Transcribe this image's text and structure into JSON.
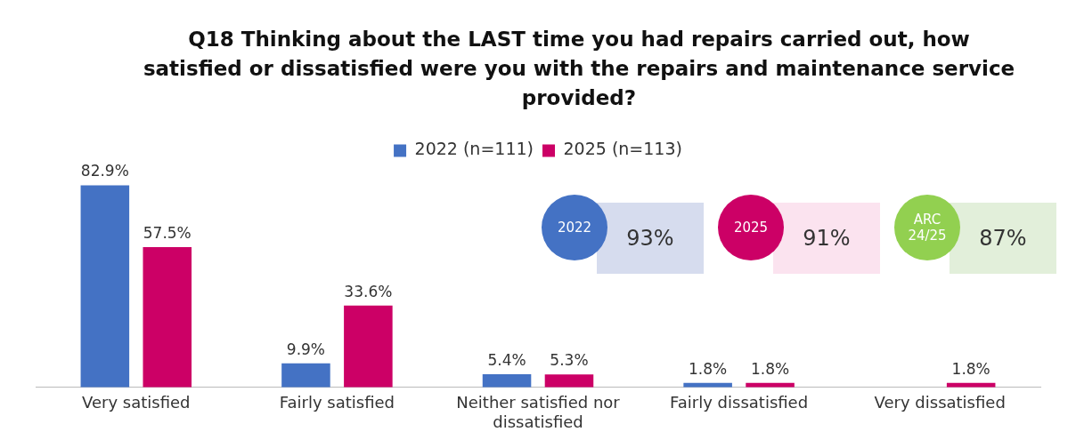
{
  "chart_data": {
    "type": "bar",
    "title": "Q18 Thinking about the LAST time you had repairs carried out, how satisfied or dissatisfied were you with the repairs and maintenance service provided?",
    "categories": [
      "Very satisfied",
      "Fairly satisfied",
      "Neither satisfied nor dissatisfied",
      "Fairly dissatisfied",
      "Very dissatisfied"
    ],
    "series": [
      {
        "name": "2022 (n=111)",
        "color": "#4472c4",
        "values": [
          82.9,
          9.9,
          5.4,
          1.8,
          null
        ],
        "value_labels": [
          "82.9%",
          "9.9%",
          "5.4%",
          "1.8%",
          null
        ]
      },
      {
        "name": "2025 (n=113)",
        "color": "#cc0066",
        "values": [
          57.5,
          33.6,
          5.3,
          1.8,
          1.8
        ],
        "value_labels": [
          "57.5%",
          "33.6%",
          "5.3%",
          "1.8%",
          "1.8%"
        ]
      }
    ],
    "annotations": [
      "2022",
      "93%",
      "2025",
      "91%",
      "ARC 24/25",
      "87%"
    ],
    "legend": "top",
    "grid": false
  }
}
